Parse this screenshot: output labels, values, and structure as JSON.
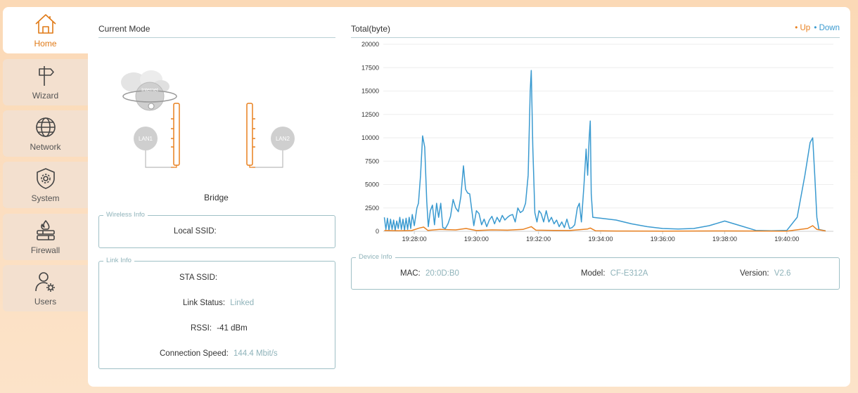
{
  "sidebar": {
    "items": [
      {
        "label": "Home",
        "icon": "home-icon",
        "active": true
      },
      {
        "label": "Wizard",
        "icon": "signpost-icon",
        "active": false
      },
      {
        "label": "Network",
        "icon": "globe-icon",
        "active": false
      },
      {
        "label": "System",
        "icon": "shield-gear-icon",
        "active": false
      },
      {
        "label": "Firewall",
        "icon": "firewall-icon",
        "active": false
      },
      {
        "label": "Users",
        "icon": "user-settings-icon",
        "active": false
      }
    ]
  },
  "current_mode": {
    "title": "Current Mode",
    "internet_label": "Internet",
    "lan1": "LAN1",
    "lan2": "LAN2",
    "mode": "Bridge"
  },
  "wireless_info": {
    "legend": "Wireless Info",
    "local_ssid_label": "Local SSID:",
    "local_ssid_value": ""
  },
  "link_info": {
    "legend": "Link Info",
    "sta_ssid_label": "STA SSID:",
    "sta_ssid_value": "",
    "link_status_label": "Link Status:",
    "link_status_value": "Linked",
    "rssi_label": "RSSI:",
    "rssi_value": "-41 dBm",
    "speed_label": "Connection Speed:",
    "speed_value": "144.4 Mbit/s"
  },
  "traffic": {
    "title": "Total(byte)",
    "legend_up": "Up",
    "legend_down": "Down",
    "color_up": "#e9801f",
    "color_down": "#3a9ad0"
  },
  "device_info": {
    "legend": "Device Info",
    "mac_label": "MAC:",
    "mac_value": "20:0D:B0",
    "model_label": "Model:",
    "model_value": "CF-E312A",
    "version_label": "Version:",
    "version_value": "V2.6"
  },
  "chart_data": {
    "type": "line",
    "title": "Total(byte)",
    "xlabel": "",
    "ylabel": "",
    "ylim": [
      0,
      20000
    ],
    "yticks": [
      0,
      2500,
      5000,
      7500,
      10000,
      12500,
      15000,
      17500,
      20000
    ],
    "xlim": [
      "19:27:00",
      "19:41:30"
    ],
    "xticks": [
      "19:28:00",
      "19:30:00",
      "19:32:00",
      "19:34:00",
      "19:36:00",
      "19:38:00",
      "19:40:00"
    ],
    "grid": true,
    "legend_position": "top-right",
    "series": [
      {
        "name": "Down",
        "color": "#3a9ad0",
        "points": [
          [
            "19:27:02",
            1500
          ],
          [
            "19:27:05",
            200
          ],
          [
            "19:27:08",
            1400
          ],
          [
            "19:27:11",
            100
          ],
          [
            "19:27:14",
            1300
          ],
          [
            "19:27:17",
            200
          ],
          [
            "19:27:20",
            1200
          ],
          [
            "19:27:23",
            100
          ],
          [
            "19:27:26",
            1100
          ],
          [
            "19:27:29",
            300
          ],
          [
            "19:27:32",
            1500
          ],
          [
            "19:27:35",
            200
          ],
          [
            "19:27:38",
            1300
          ],
          [
            "19:27:41",
            100
          ],
          [
            "19:27:44",
            1400
          ],
          [
            "19:27:47",
            200
          ],
          [
            "19:27:50",
            1500
          ],
          [
            "19:27:53",
            300
          ],
          [
            "19:27:56",
            1800
          ],
          [
            "19:28:00",
            600
          ],
          [
            "19:28:05",
            2500
          ],
          [
            "19:28:08",
            3000
          ],
          [
            "19:28:12",
            6000
          ],
          [
            "19:28:16",
            10200
          ],
          [
            "19:28:20",
            9000
          ],
          [
            "19:28:24",
            3200
          ],
          [
            "19:28:27",
            500
          ],
          [
            "19:28:31",
            2200
          ],
          [
            "19:28:35",
            2800
          ],
          [
            "19:28:39",
            700
          ],
          [
            "19:28:43",
            3000
          ],
          [
            "19:28:47",
            1500
          ],
          [
            "19:28:51",
            3000
          ],
          [
            "19:28:55",
            400
          ],
          [
            "19:29:00",
            300
          ],
          [
            "19:29:05",
            800
          ],
          [
            "19:29:10",
            1600
          ],
          [
            "19:29:15",
            3400
          ],
          [
            "19:29:20",
            2500
          ],
          [
            "19:29:25",
            2100
          ],
          [
            "19:29:30",
            3700
          ],
          [
            "19:29:35",
            7000
          ],
          [
            "19:29:39",
            4500
          ],
          [
            "19:29:43",
            4100
          ],
          [
            "19:29:47",
            4000
          ],
          [
            "19:29:51",
            2300
          ],
          [
            "19:29:55",
            600
          ],
          [
            "19:30:00",
            2200
          ],
          [
            "19:30:05",
            1900
          ],
          [
            "19:30:10",
            700
          ],
          [
            "19:30:15",
            1300
          ],
          [
            "19:30:20",
            500
          ],
          [
            "19:30:25",
            1200
          ],
          [
            "19:30:30",
            1600
          ],
          [
            "19:30:35",
            800
          ],
          [
            "19:30:40",
            1500
          ],
          [
            "19:30:45",
            1000
          ],
          [
            "19:30:50",
            1700
          ],
          [
            "19:30:55",
            1200
          ],
          [
            "19:31:00",
            1500
          ],
          [
            "19:31:05",
            1700
          ],
          [
            "19:31:10",
            1800
          ],
          [
            "19:31:15",
            1000
          ],
          [
            "19:31:20",
            2500
          ],
          [
            "19:31:25",
            2000
          ],
          [
            "19:31:30",
            2200
          ],
          [
            "19:31:35",
            3000
          ],
          [
            "19:31:40",
            6000
          ],
          [
            "19:31:44",
            15000
          ],
          [
            "19:31:46",
            17200
          ],
          [
            "19:31:49",
            9000
          ],
          [
            "19:31:53",
            2000
          ],
          [
            "19:31:57",
            1000
          ],
          [
            "19:32:01",
            2200
          ],
          [
            "19:32:05",
            1900
          ],
          [
            "19:32:10",
            1000
          ],
          [
            "19:32:15",
            2200
          ],
          [
            "19:32:20",
            1000
          ],
          [
            "19:32:25",
            1500
          ],
          [
            "19:32:30",
            800
          ],
          [
            "19:32:35",
            1200
          ],
          [
            "19:32:40",
            500
          ],
          [
            "19:32:45",
            1000
          ],
          [
            "19:32:50",
            400
          ],
          [
            "19:32:55",
            1300
          ],
          [
            "19:33:00",
            300
          ],
          [
            "19:33:05",
            400
          ],
          [
            "19:33:10",
            700
          ],
          [
            "19:33:15",
            2500
          ],
          [
            "19:33:19",
            3000
          ],
          [
            "19:33:23",
            1000
          ],
          [
            "19:33:28",
            5000
          ],
          [
            "19:33:32",
            8800
          ],
          [
            "19:33:35",
            6000
          ],
          [
            "19:33:38",
            10000
          ],
          [
            "19:33:40",
            11800
          ],
          [
            "19:33:42",
            4000
          ],
          [
            "19:33:45",
            1500
          ],
          [
            "19:34:00",
            1400
          ],
          [
            "19:34:30",
            1200
          ],
          [
            "19:35:00",
            800
          ],
          [
            "19:35:30",
            500
          ],
          [
            "19:36:00",
            300
          ],
          [
            "19:36:30",
            250
          ],
          [
            "19:37:00",
            300
          ],
          [
            "19:37:30",
            600
          ],
          [
            "19:38:00",
            1100
          ],
          [
            "19:38:30",
            600
          ],
          [
            "19:39:00",
            100
          ],
          [
            "19:39:30",
            50
          ],
          [
            "19:40:00",
            100
          ],
          [
            "19:40:20",
            1500
          ],
          [
            "19:40:35",
            6000
          ],
          [
            "19:40:45",
            9500
          ],
          [
            "19:40:50",
            10000
          ],
          [
            "19:40:54",
            6000
          ],
          [
            "19:40:58",
            1500
          ],
          [
            "19:41:02",
            200
          ],
          [
            "19:41:15",
            50
          ]
        ]
      },
      {
        "name": "Up",
        "color": "#e9801f",
        "points": [
          [
            "19:27:02",
            100
          ],
          [
            "19:27:30",
            60
          ],
          [
            "19:27:55",
            80
          ],
          [
            "19:28:10",
            350
          ],
          [
            "19:28:18",
            450
          ],
          [
            "19:28:26",
            100
          ],
          [
            "19:28:50",
            200
          ],
          [
            "19:29:20",
            150
          ],
          [
            "19:29:40",
            300
          ],
          [
            "19:30:00",
            80
          ],
          [
            "19:30:30",
            150
          ],
          [
            "19:31:00",
            120
          ],
          [
            "19:31:30",
            200
          ],
          [
            "19:31:46",
            500
          ],
          [
            "19:31:55",
            120
          ],
          [
            "19:32:30",
            90
          ],
          [
            "19:33:00",
            80
          ],
          [
            "19:33:35",
            250
          ],
          [
            "19:33:40",
            350
          ],
          [
            "19:33:50",
            60
          ],
          [
            "19:34:30",
            30
          ],
          [
            "19:36:00",
            20
          ],
          [
            "19:38:00",
            40
          ],
          [
            "19:40:00",
            20
          ],
          [
            "19:40:40",
            300
          ],
          [
            "19:40:50",
            600
          ],
          [
            "19:40:58",
            200
          ],
          [
            "19:41:15",
            40
          ]
        ]
      }
    ]
  }
}
